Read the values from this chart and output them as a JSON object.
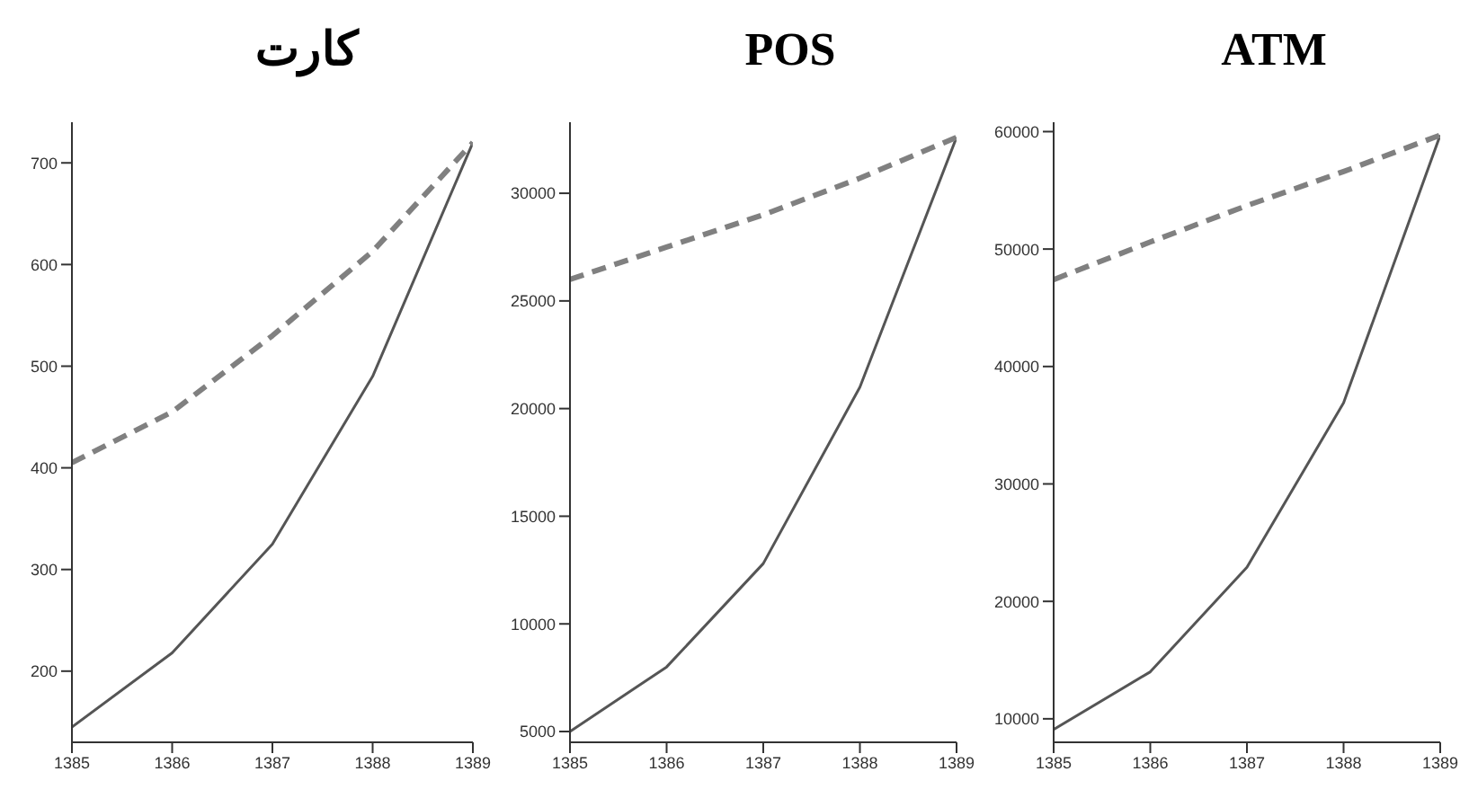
{
  "chart_data": [
    {
      "type": "line",
      "title": "کارت",
      "x": [
        1385,
        1386,
        1387,
        1388,
        1389
      ],
      "xlim": [
        1385,
        1389
      ],
      "xticks": [
        1385,
        1386,
        1387,
        1388,
        1389
      ],
      "ylim": [
        130,
        740
      ],
      "yticks": [
        200,
        300,
        400,
        500,
        600,
        700
      ],
      "grid": false,
      "legend": false,
      "marker": "none",
      "series": [
        {
          "color": "#555555",
          "line_style": "solid",
          "values": [
            145,
            218,
            325,
            490,
            720
          ]
        },
        {
          "color": "#808080",
          "line_style": "dashed",
          "values": [
            405,
            455,
            530,
            613,
            720
          ]
        }
      ]
    },
    {
      "type": "line",
      "title": "POS",
      "x": [
        1385,
        1386,
        1387,
        1388,
        1389
      ],
      "xlim": [
        1385,
        1389
      ],
      "xticks": [
        1385,
        1386,
        1387,
        1388,
        1389
      ],
      "ylim": [
        4500,
        33300
      ],
      "yticks": [
        5000,
        10000,
        15000,
        20000,
        25000,
        30000
      ],
      "grid": false,
      "legend": false,
      "marker": "none",
      "series": [
        {
          "color": "#555555",
          "line_style": "solid",
          "values": [
            5000,
            8000,
            12800,
            21000,
            32600
          ]
        },
        {
          "color": "#808080",
          "line_style": "dashed",
          "values": [
            26000,
            27500,
            29000,
            30700,
            32600
          ]
        }
      ]
    },
    {
      "type": "line",
      "title": "ATM",
      "x": [
        1385,
        1386,
        1387,
        1388,
        1389
      ],
      "xlim": [
        1385,
        1389
      ],
      "xticks": [
        1385,
        1386,
        1387,
        1388,
        1389
      ],
      "ylim": [
        8000,
        60800
      ],
      "yticks": [
        10000,
        20000,
        30000,
        40000,
        50000,
        60000
      ],
      "grid": false,
      "legend": false,
      "marker": "none",
      "series": [
        {
          "color": "#555555",
          "line_style": "solid",
          "values": [
            9100,
            14000,
            22900,
            36900,
            59700
          ]
        },
        {
          "color": "#808080",
          "line_style": "dashed",
          "values": [
            47400,
            50600,
            53700,
            56600,
            59700
          ]
        }
      ]
    }
  ]
}
